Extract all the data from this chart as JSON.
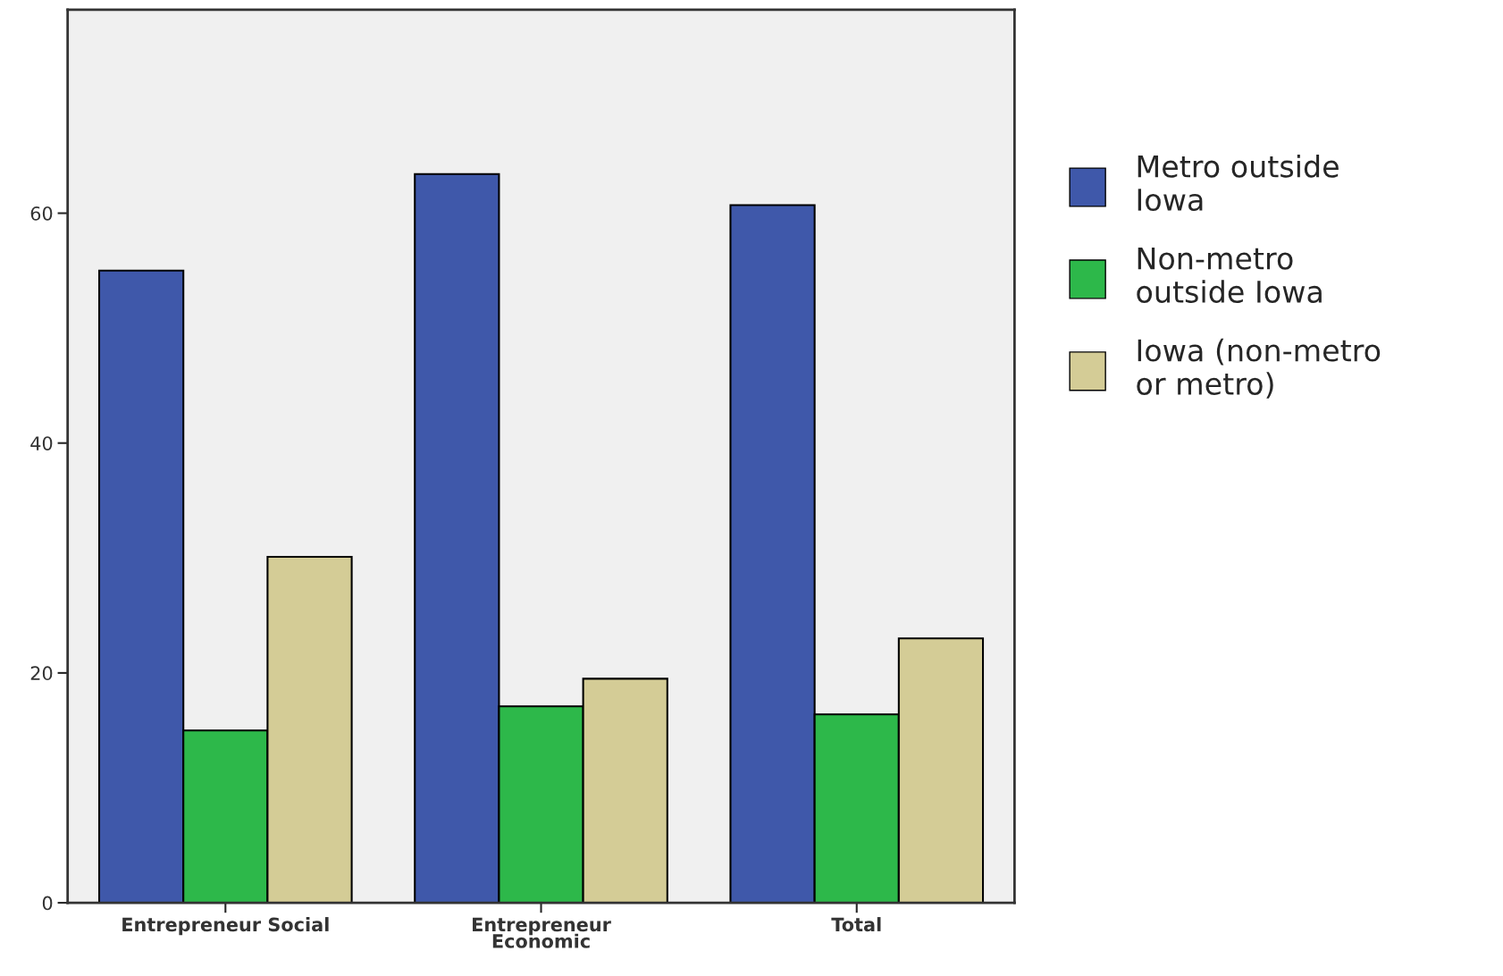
{
  "chart_data": {
    "type": "bar",
    "categories": [
      "Entrepreneur Social",
      "Entrepreneur\nEconomic",
      "Total"
    ],
    "series": [
      {
        "name": "Metro outside\nIowa",
        "color": "#3f58aa",
        "values": [
          55.0,
          63.4,
          60.7
        ]
      },
      {
        "name": "Non-metro\noutside Iowa",
        "color": "#2db84a",
        "values": [
          15.0,
          17.1,
          16.4
        ]
      },
      {
        "name": "Iowa (non-metro\nor metro)",
        "color": "#d4cc96",
        "values": [
          30.1,
          19.5,
          23.0
        ]
      }
    ],
    "ylim": [
      0,
      77.7
    ],
    "yticks": [
      0,
      20,
      40,
      60
    ],
    "grid": false,
    "legend": "right"
  }
}
